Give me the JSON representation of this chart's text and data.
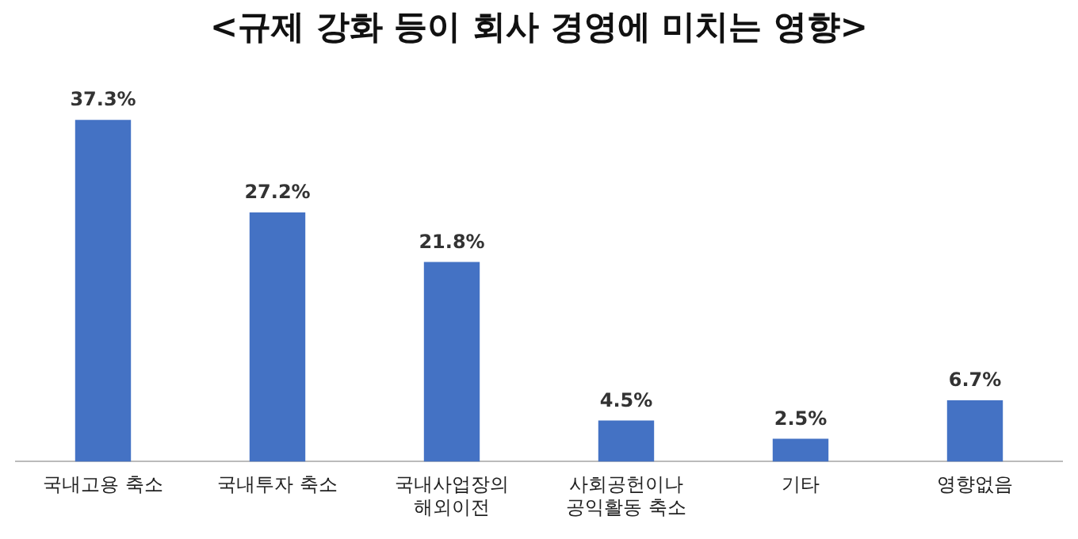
{
  "chart_data": {
    "type": "bar",
    "title": "<규제 강화 등이 회사 경영에 미치는 영향>",
    "categories": [
      "국내고용 축소",
      "국내투자 축소",
      "국내사업장의\n해외이전",
      "사회공헌이나\n공익활동 축소",
      "기타",
      "영향없음"
    ],
    "values": [
      37.3,
      27.2,
      21.8,
      4.5,
      2.5,
      6.7
    ],
    "value_labels": [
      "37.3%",
      "27.2%",
      "21.8%",
      "4.5%",
      "2.5%",
      "6.7%"
    ],
    "color": "#4472c4",
    "grid": false,
    "legend": false
  }
}
